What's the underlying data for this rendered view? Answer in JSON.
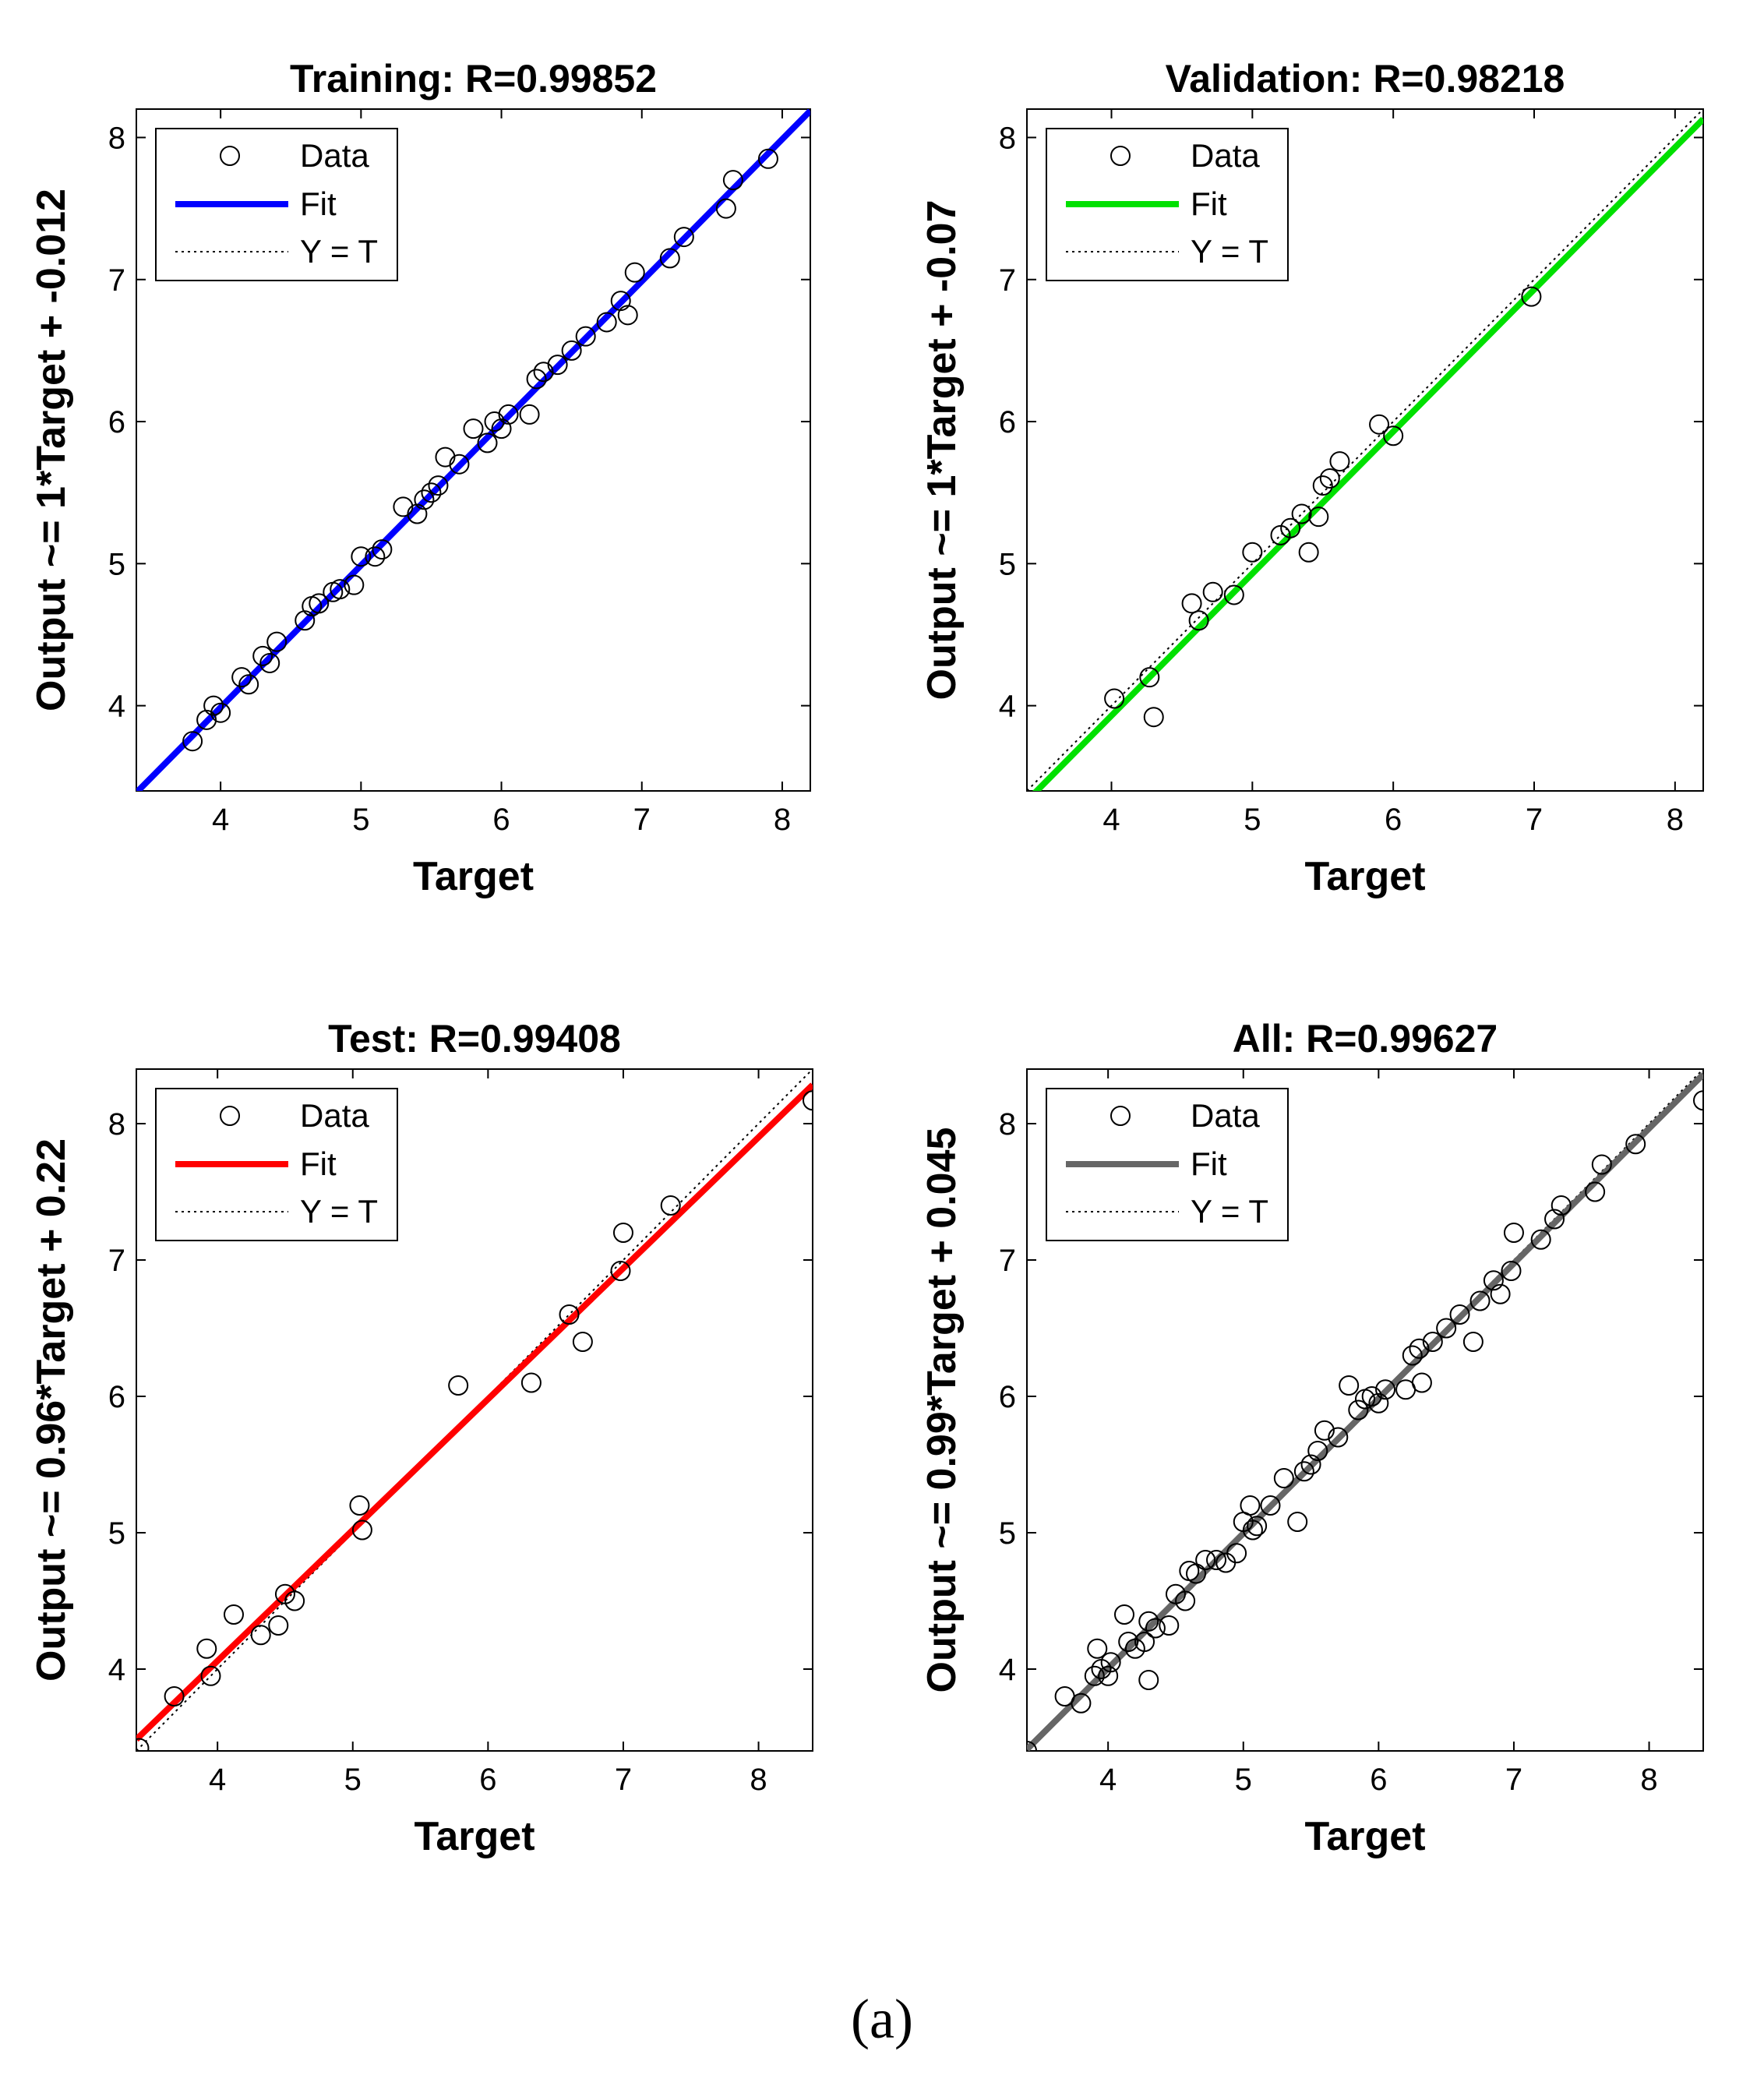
{
  "caption": "(a)",
  "legend_labels": {
    "data": "Data",
    "fit": "Fit",
    "identity": "Y = T"
  },
  "chart_data": [
    {
      "type": "scatter",
      "title": "Training: R=0.99852",
      "xlabel": "Target",
      "ylabel": "Output ~= 1*Target + -0.012",
      "xlim": [
        3.4,
        8.2
      ],
      "ylim": [
        3.4,
        8.2
      ],
      "xticks": [
        4,
        5,
        6,
        7,
        8
      ],
      "yticks": [
        4,
        5,
        6,
        7,
        8
      ],
      "fit": {
        "slope": 1.0,
        "intercept": -0.012,
        "color": "#0000ff"
      },
      "points": [
        [
          3.8,
          3.75
        ],
        [
          3.9,
          3.9
        ],
        [
          3.95,
          4.0
        ],
        [
          4.0,
          3.95
        ],
        [
          4.15,
          4.2
        ],
        [
          4.2,
          4.15
        ],
        [
          4.3,
          4.35
        ],
        [
          4.35,
          4.3
        ],
        [
          4.4,
          4.45
        ],
        [
          4.6,
          4.6
        ],
        [
          4.65,
          4.7
        ],
        [
          4.7,
          4.72
        ],
        [
          4.8,
          4.8
        ],
        [
          4.85,
          4.82
        ],
        [
          4.95,
          4.85
        ],
        [
          5.0,
          5.05
        ],
        [
          5.1,
          5.05
        ],
        [
          5.15,
          5.1
        ],
        [
          5.3,
          5.4
        ],
        [
          5.4,
          5.35
        ],
        [
          5.45,
          5.45
        ],
        [
          5.5,
          5.5
        ],
        [
          5.55,
          5.55
        ],
        [
          5.6,
          5.75
        ],
        [
          5.7,
          5.7
        ],
        [
          5.8,
          5.95
        ],
        [
          5.9,
          5.85
        ],
        [
          5.95,
          6.0
        ],
        [
          6.0,
          5.95
        ],
        [
          6.05,
          6.05
        ],
        [
          6.2,
          6.05
        ],
        [
          6.25,
          6.3
        ],
        [
          6.3,
          6.35
        ],
        [
          6.4,
          6.4
        ],
        [
          6.5,
          6.5
        ],
        [
          6.6,
          6.6
        ],
        [
          6.75,
          6.7
        ],
        [
          6.85,
          6.85
        ],
        [
          6.9,
          6.75
        ],
        [
          6.95,
          7.05
        ],
        [
          7.2,
          7.15
        ],
        [
          7.3,
          7.3
        ],
        [
          7.6,
          7.5
        ],
        [
          7.65,
          7.7
        ],
        [
          7.9,
          7.85
        ]
      ]
    },
    {
      "type": "scatter",
      "title": "Validation: R=0.98218",
      "xlabel": "Target",
      "ylabel": "Output ~= 1*Target + -0.07",
      "xlim": [
        3.4,
        8.2
      ],
      "ylim": [
        3.4,
        8.2
      ],
      "xticks": [
        4,
        5,
        6,
        7,
        8
      ],
      "yticks": [
        4,
        5,
        6,
        7,
        8
      ],
      "fit": {
        "slope": 1.0,
        "intercept": -0.07,
        "color": "#00e000"
      },
      "points": [
        [
          4.02,
          4.05
        ],
        [
          4.27,
          4.2
        ],
        [
          4.3,
          3.92
        ],
        [
          4.57,
          4.72
        ],
        [
          4.62,
          4.6
        ],
        [
          4.72,
          4.8
        ],
        [
          4.87,
          4.78
        ],
        [
          5.0,
          5.08
        ],
        [
          5.2,
          5.2
        ],
        [
          5.27,
          5.25
        ],
        [
          5.35,
          5.35
        ],
        [
          5.4,
          5.08
        ],
        [
          5.47,
          5.33
        ],
        [
          5.5,
          5.55
        ],
        [
          5.55,
          5.6
        ],
        [
          5.62,
          5.72
        ],
        [
          5.9,
          5.98
        ],
        [
          6.0,
          5.9
        ],
        [
          6.98,
          6.88
        ]
      ]
    },
    {
      "type": "scatter",
      "title": "Test: R=0.99408",
      "xlabel": "Target",
      "ylabel": "Output ~= 0.96*Target + 0.22",
      "xlim": [
        3.4,
        8.4
      ],
      "ylim": [
        3.4,
        8.4
      ],
      "xticks": [
        4,
        5,
        6,
        7,
        8
      ],
      "yticks": [
        4,
        5,
        6,
        7,
        8
      ],
      "fit": {
        "slope": 0.96,
        "intercept": 0.22,
        "color": "#ff0000"
      },
      "points": [
        [
          3.42,
          3.42
        ],
        [
          3.68,
          3.8
        ],
        [
          3.92,
          4.15
        ],
        [
          3.95,
          3.95
        ],
        [
          4.12,
          4.4
        ],
        [
          4.32,
          4.25
        ],
        [
          4.45,
          4.32
        ],
        [
          4.5,
          4.55
        ],
        [
          4.57,
          4.5
        ],
        [
          5.05,
          5.2
        ],
        [
          5.07,
          5.02
        ],
        [
          5.78,
          6.08
        ],
        [
          6.32,
          6.1
        ],
        [
          6.6,
          6.6
        ],
        [
          6.7,
          6.4
        ],
        [
          6.98,
          6.92
        ],
        [
          7.0,
          7.2
        ],
        [
          7.35,
          7.4
        ],
        [
          8.4,
          8.17
        ]
      ]
    },
    {
      "type": "scatter",
      "title": "All: R=0.99627",
      "xlabel": "Target",
      "ylabel": "Output ~= 0.99*Target + 0.045",
      "xlim": [
        3.4,
        8.4
      ],
      "ylim": [
        3.4,
        8.4
      ],
      "xticks": [
        4,
        5,
        6,
        7,
        8
      ],
      "yticks": [
        4,
        5,
        6,
        7,
        8
      ],
      "fit": {
        "slope": 0.99,
        "intercept": 0.045,
        "color": "#666666"
      },
      "points": [
        [
          3.4,
          3.4
        ],
        [
          3.68,
          3.8
        ],
        [
          3.8,
          3.75
        ],
        [
          3.9,
          3.95
        ],
        [
          3.92,
          4.15
        ],
        [
          3.95,
          4.0
        ],
        [
          4.0,
          3.95
        ],
        [
          4.02,
          4.05
        ],
        [
          4.12,
          4.4
        ],
        [
          4.15,
          4.2
        ],
        [
          4.2,
          4.15
        ],
        [
          4.27,
          4.2
        ],
        [
          4.3,
          3.92
        ],
        [
          4.3,
          4.35
        ],
        [
          4.35,
          4.3
        ],
        [
          4.45,
          4.32
        ],
        [
          4.5,
          4.55
        ],
        [
          4.57,
          4.5
        ],
        [
          4.6,
          4.72
        ],
        [
          4.65,
          4.7
        ],
        [
          4.72,
          4.8
        ],
        [
          4.8,
          4.8
        ],
        [
          4.87,
          4.78
        ],
        [
          4.95,
          4.85
        ],
        [
          5.0,
          5.08
        ],
        [
          5.05,
          5.2
        ],
        [
          5.07,
          5.02
        ],
        [
          5.1,
          5.05
        ],
        [
          5.2,
          5.2
        ],
        [
          5.3,
          5.4
        ],
        [
          5.4,
          5.08
        ],
        [
          5.45,
          5.45
        ],
        [
          5.5,
          5.5
        ],
        [
          5.55,
          5.6
        ],
        [
          5.6,
          5.75
        ],
        [
          5.7,
          5.7
        ],
        [
          5.78,
          6.08
        ],
        [
          5.85,
          5.9
        ],
        [
          5.9,
          5.98
        ],
        [
          5.95,
          6.0
        ],
        [
          6.0,
          5.95
        ],
        [
          6.05,
          6.05
        ],
        [
          6.2,
          6.05
        ],
        [
          6.25,
          6.3
        ],
        [
          6.3,
          6.35
        ],
        [
          6.32,
          6.1
        ],
        [
          6.4,
          6.4
        ],
        [
          6.5,
          6.5
        ],
        [
          6.6,
          6.6
        ],
        [
          6.7,
          6.4
        ],
        [
          6.75,
          6.7
        ],
        [
          6.85,
          6.85
        ],
        [
          6.9,
          6.75
        ],
        [
          6.98,
          6.92
        ],
        [
          7.0,
          7.2
        ],
        [
          7.2,
          7.15
        ],
        [
          7.3,
          7.3
        ],
        [
          7.35,
          7.4
        ],
        [
          7.6,
          7.5
        ],
        [
          7.65,
          7.7
        ],
        [
          7.9,
          7.85
        ],
        [
          8.4,
          8.17
        ]
      ]
    }
  ]
}
